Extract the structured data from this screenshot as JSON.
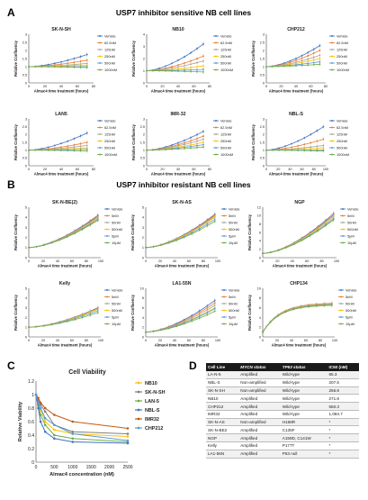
{
  "figure": {
    "panel_a": {
      "letter": "A",
      "title": "USP7 inhibitor sensitive NB cell lines"
    },
    "panel_b": {
      "letter": "B",
      "title": "USP7 inhibitor resistant NB cell lines"
    },
    "panel_c": {
      "letter": "C"
    },
    "panel_d": {
      "letter": "D"
    }
  },
  "colors": {
    "Vehicle": "#4472c4",
    "62.5nM": "#ed7d31",
    "125nM": "#a5a5a5",
    "250nM": "#ffc000",
    "500nM": "#5b9bd5",
    "1000nM": "#70ad47",
    "5nM": "#ed7d31",
    "50nM": "#a5a5a5",
    "500nM_b": "#ffc000",
    "5µM": "#5b9bd5",
    "10µM": "#70ad47",
    "NB10": "#ffc000",
    "SK-N-SH": "#7f7f7f",
    "LAN-5": "#70ad47",
    "NBL-S": "#4472c4",
    "IMR32": "#c55a11",
    "CHP212": "#5b9bd5"
  },
  "chart_data": [
    {
      "type": "line",
      "panel": "A",
      "title": "SK-N-SH",
      "xlabel": "Almac4 time treatment (hours)",
      "ylabel": "Relative Confluency",
      "xlim": [
        0,
        80
      ],
      "ylim": [
        0,
        3
      ],
      "yticks": [
        "0",
        "0.5",
        "1",
        "1.5",
        "2",
        "2.5",
        "3"
      ],
      "xticks": [
        "0",
        "20",
        "40",
        "60",
        "80"
      ],
      "series": [
        {
          "name": "Vehicle",
          "start": 1,
          "end": 1.75
        },
        {
          "name": "62.5nM",
          "start": 1,
          "end": 1.4
        },
        {
          "name": "125nM",
          "start": 1,
          "end": 1.2
        },
        {
          "name": "250nM",
          "start": 1,
          "end": 1.1
        },
        {
          "name": "500nM",
          "start": 1,
          "end": 1.0
        },
        {
          "name": "1000nM",
          "start": 1,
          "end": 0.95
        }
      ]
    },
    {
      "type": "line",
      "panel": "A",
      "title": "NB10",
      "xlabel": "Almac4 time treatment (hours)",
      "ylabel": "Relative Confluency",
      "xlim": [
        0,
        80
      ],
      "ylim": [
        0,
        4
      ],
      "yticks": [
        "0",
        "1",
        "2",
        "3",
        "4"
      ],
      "xticks": [
        "0",
        "20",
        "40",
        "60",
        "80"
      ],
      "series": [
        {
          "name": "Vehicle",
          "start": 1,
          "end": 3.2
        },
        {
          "name": "62.5nM",
          "start": 1,
          "end": 2.2
        },
        {
          "name": "125nM",
          "start": 1,
          "end": 1.8
        },
        {
          "name": "250nM",
          "start": 1,
          "end": 1.4
        },
        {
          "name": "500nM",
          "start": 1,
          "end": 1.1
        },
        {
          "name": "1000nM",
          "start": 1,
          "end": 0.9
        }
      ]
    },
    {
      "type": "line",
      "panel": "A",
      "title": "CHP212",
      "xlabel": "Almac4 time treatment (hours)",
      "ylabel": "Relative Confluency",
      "xlim": [
        0,
        80
      ],
      "ylim": [
        0,
        3
      ],
      "yticks": [
        "0",
        "0.5",
        "1",
        "1.5",
        "2",
        "2.5",
        "3"
      ],
      "xticks": [
        "0",
        "20",
        "40",
        "60",
        "80"
      ],
      "series": [
        {
          "name": "Vehicle",
          "start": 1,
          "end": 2.3
        },
        {
          "name": "62.5nM",
          "start": 1,
          "end": 2.0
        },
        {
          "name": "125nM",
          "start": 1,
          "end": 1.7
        },
        {
          "name": "250nM",
          "start": 1,
          "end": 1.5
        },
        {
          "name": "500nM",
          "start": 1,
          "end": 1.3
        },
        {
          "name": "1000nM",
          "start": 1,
          "end": 1.15
        }
      ]
    },
    {
      "type": "line",
      "panel": "A",
      "title": "LAN5",
      "xlabel": "Almac4 time treatment (hours)",
      "ylabel": "Relative Confluency",
      "xlim": [
        0,
        80
      ],
      "ylim": [
        0,
        3
      ],
      "yticks": [
        "0",
        "0.5",
        "1",
        "1.5",
        "2",
        "2.5",
        "3"
      ],
      "xticks": [
        "0",
        "20",
        "40",
        "60",
        "80"
      ],
      "series": [
        {
          "name": "Vehicle",
          "start": 1,
          "end": 2.1
        },
        {
          "name": "62.5nM",
          "start": 1,
          "end": 1.5
        },
        {
          "name": "125nM",
          "start": 1,
          "end": 1.3
        },
        {
          "name": "250nM",
          "start": 1,
          "end": 1.15
        },
        {
          "name": "500nM",
          "start": 1,
          "end": 1.05
        },
        {
          "name": "1000nM",
          "start": 1,
          "end": 0.95
        }
      ]
    },
    {
      "type": "line",
      "panel": "A",
      "title": "IMR-32",
      "xlabel": "Almac4 time treatment (hours)",
      "ylabel": "Relative Confluency",
      "xlim": [
        0,
        80
      ],
      "ylim": [
        0,
        3
      ],
      "yticks": [
        "0",
        "0.5",
        "1",
        "1.5",
        "2",
        "2.5",
        "3"
      ],
      "xticks": [
        "0",
        "20",
        "40",
        "60",
        "80"
      ],
      "series": [
        {
          "name": "Vehicle",
          "start": 1,
          "end": 2.2
        },
        {
          "name": "62.5nM",
          "start": 1,
          "end": 1.9
        },
        {
          "name": "125nM",
          "start": 1,
          "end": 1.7
        },
        {
          "name": "250nM",
          "start": 1,
          "end": 1.5
        },
        {
          "name": "500nM",
          "start": 1,
          "end": 1.35
        },
        {
          "name": "1000nM",
          "start": 1,
          "end": 1.2
        }
      ]
    },
    {
      "type": "line",
      "panel": "A",
      "title": "NBL-S",
      "xlabel": "Almac4 time treatment (hours)",
      "ylabel": "Relative Confluency",
      "xlim": [
        0,
        100
      ],
      "ylim": [
        0,
        3
      ],
      "yticks": [
        "0",
        "0.5",
        "1",
        "1.5",
        "2",
        "2.5",
        "3"
      ],
      "xticks": [
        "0",
        "20",
        "40",
        "60",
        "80",
        "100"
      ],
      "series": [
        {
          "name": "Vehicle",
          "start": 1,
          "end": 2.5
        },
        {
          "name": "62.5nM",
          "start": 1,
          "end": 1.7
        },
        {
          "name": "125nM",
          "start": 1,
          "end": 1.3
        },
        {
          "name": "250nM",
          "start": 1,
          "end": 1.15
        },
        {
          "name": "500nM",
          "start": 1,
          "end": 1.0
        },
        {
          "name": "1000nM",
          "start": 1,
          "end": 0.95
        }
      ]
    },
    {
      "type": "line",
      "panel": "B",
      "title": "SK-N-BE(2)",
      "xlabel": "Almac4 time treatment (hours)",
      "ylabel": "Relative Confluency",
      "xlim": [
        0,
        100
      ],
      "ylim": [
        0,
        5
      ],
      "yticks": [
        "0",
        "1",
        "2",
        "3",
        "4",
        "5"
      ],
      "xticks": [
        "0",
        "20",
        "40",
        "60",
        "80",
        "100"
      ],
      "series": [
        {
          "name": "Vehicle",
          "start": 1,
          "end": 4.2
        },
        {
          "name": "5nM",
          "start": 1,
          "end": 4.1
        },
        {
          "name": "50nM",
          "start": 1,
          "end": 4.0
        },
        {
          "name": "500nM",
          "start": 1,
          "end": 3.9
        },
        {
          "name": "5µM",
          "start": 1,
          "end": 3.8
        },
        {
          "name": "10µM",
          "start": 1,
          "end": 3.7
        }
      ]
    },
    {
      "type": "line",
      "panel": "B",
      "title": "SK-N-AS",
      "xlabel": "Almac4 time treatment (hours)",
      "ylabel": "Relative Confluency",
      "xlim": [
        0,
        100
      ],
      "ylim": [
        0,
        5
      ],
      "yticks": [
        "0",
        "1",
        "2",
        "3",
        "4",
        "5"
      ],
      "xticks": [
        "0",
        "20",
        "40",
        "60",
        "80",
        "100"
      ],
      "series": [
        {
          "name": "Vehicle",
          "start": 1,
          "end": 4.3
        },
        {
          "name": "5nM",
          "start": 1,
          "end": 4.2
        },
        {
          "name": "50nM",
          "start": 1,
          "end": 4.1
        },
        {
          "name": "500nM",
          "start": 1,
          "end": 4.0
        },
        {
          "name": "5µM",
          "start": 1,
          "end": 3.8
        },
        {
          "name": "10µM",
          "start": 1,
          "end": 3.6
        }
      ]
    },
    {
      "type": "line",
      "panel": "B",
      "title": "NGP",
      "xlabel": "Almac4 time treatment (hours)",
      "ylabel": "Relative Confluency",
      "xlim": [
        0,
        100
      ],
      "ylim": [
        0,
        12
      ],
      "yticks": [
        "0",
        "2",
        "4",
        "6",
        "8",
        "10",
        "12"
      ],
      "xticks": [
        "0",
        "20",
        "40",
        "60",
        "80",
        "100"
      ],
      "series": [
        {
          "name": "Vehicle",
          "start": 1,
          "end": 10.5
        },
        {
          "name": "5nM",
          "start": 1,
          "end": 10.2
        },
        {
          "name": "50nM",
          "start": 1,
          "end": 10.0
        },
        {
          "name": "500nM",
          "start": 1,
          "end": 9.7
        },
        {
          "name": "5µM",
          "start": 1,
          "end": 9.3
        },
        {
          "name": "10µM",
          "start": 1,
          "end": 9.0
        }
      ]
    },
    {
      "type": "line",
      "panel": "B",
      "title": "Kelly",
      "xlabel": "Almac4 time treatment (hours)",
      "ylabel": "Relative Confluency",
      "xlim": [
        0,
        100
      ],
      "ylim": [
        0,
        5
      ],
      "yticks": [
        "0",
        "1",
        "2",
        "3",
        "4",
        "5"
      ],
      "xticks": [
        "0",
        "20",
        "40",
        "60",
        "80",
        "100"
      ],
      "series": [
        {
          "name": "Vehicle",
          "start": 1,
          "end": 3.0
        },
        {
          "name": "5nM",
          "start": 1,
          "end": 2.95
        },
        {
          "name": "50nM",
          "start": 1,
          "end": 2.9
        },
        {
          "name": "500nM",
          "start": 1,
          "end": 2.85
        },
        {
          "name": "5µM",
          "start": 1,
          "end": 2.7
        },
        {
          "name": "10µM",
          "start": 1,
          "end": 2.5
        }
      ]
    },
    {
      "type": "line",
      "panel": "B",
      "title": "LA1-55N",
      "xlabel": "Almac4 time treatment (hours)",
      "ylabel": "Relative Confluency",
      "xlim": [
        0,
        100
      ],
      "ylim": [
        0,
        10
      ],
      "yticks": [
        "0",
        "2",
        "4",
        "6",
        "8",
        "10"
      ],
      "xticks": [
        "0",
        "20",
        "40",
        "60",
        "80",
        "100"
      ],
      "series": [
        {
          "name": "Vehicle",
          "start": 1,
          "end": 7.5
        },
        {
          "name": "5nM",
          "start": 1,
          "end": 7.0
        },
        {
          "name": "50nM",
          "start": 1,
          "end": 6.5
        },
        {
          "name": "500nM",
          "start": 1,
          "end": 6.0
        },
        {
          "name": "5µM",
          "start": 1,
          "end": 5.8
        },
        {
          "name": "10µM",
          "start": 1,
          "end": 5.3
        }
      ]
    },
    {
      "type": "line",
      "panel": "B",
      "title": "CHP134",
      "xlabel": "Almac4 time treatment (hours)",
      "ylabel": "Relative Confluency",
      "xlim": [
        0,
        100
      ],
      "ylim": [
        0,
        10
      ],
      "yticks": [
        "0",
        "2",
        "4",
        "6",
        "8",
        "10"
      ],
      "xticks": [
        "0",
        "20",
        "40",
        "60",
        "80",
        "100"
      ],
      "plateau": true,
      "series": [
        {
          "name": "Vehicle",
          "start": 1,
          "end": 7.0
        },
        {
          "name": "5nM",
          "start": 1,
          "end": 7.0
        },
        {
          "name": "50nM",
          "start": 1,
          "end": 6.9
        },
        {
          "name": "500nM",
          "start": 1,
          "end": 6.8
        },
        {
          "name": "5µM",
          "start": 1,
          "end": 6.7
        },
        {
          "name": "10µM",
          "start": 1,
          "end": 6.6
        }
      ]
    },
    {
      "type": "line",
      "panel": "C",
      "title": "Cell Viability",
      "xlabel": "Almac4 concentration (nM)",
      "ylabel": "Relative Viability",
      "xlim": [
        0,
        2500
      ],
      "ylim": [
        0,
        1.2
      ],
      "yticks": [
        "0",
        "0.2",
        "0.4",
        "0.6",
        "0.8",
        "1",
        "1.2"
      ],
      "xticks": [
        "0",
        "500",
        "1000",
        "1500",
        "2000",
        "2500"
      ],
      "x": [
        0,
        62.5,
        125,
        250,
        500,
        1000,
        2500
      ],
      "series": [
        {
          "name": "NB10",
          "values": [
            1.0,
            0.9,
            0.78,
            0.6,
            0.48,
            0.42,
            0.38
          ]
        },
        {
          "name": "SK-N-SH",
          "values": [
            1.0,
            0.92,
            0.85,
            0.75,
            0.55,
            0.45,
            0.42
          ]
        },
        {
          "name": "LAN-5",
          "values": [
            1.0,
            0.85,
            0.7,
            0.55,
            0.4,
            0.35,
            0.3
          ]
        },
        {
          "name": "NBL-S",
          "values": [
            1.0,
            0.8,
            0.6,
            0.45,
            0.35,
            0.3,
            0.28
          ]
        },
        {
          "name": "IMR32",
          "values": [
            1.0,
            0.95,
            0.88,
            0.8,
            0.7,
            0.6,
            0.5
          ]
        },
        {
          "name": "CHP212",
          "values": [
            1.0,
            0.88,
            0.8,
            0.65,
            0.55,
            0.42,
            0.32
          ]
        }
      ]
    }
  ],
  "table": {
    "headers": [
      "Cell Line",
      "MYCN status",
      "TP53 status",
      "IC50 (nM)"
    ],
    "rows": [
      [
        "LA-N-5",
        "Amplified",
        "Wild-type",
        "65.3"
      ],
      [
        "NBL-S",
        "Non-amplified",
        "Wild-type",
        "207.5"
      ],
      [
        "SK-N-SH",
        "Non-amplified",
        "Wild-type",
        "256.8"
      ],
      [
        "NB10",
        "Amplified",
        "Wild-type",
        "271.8"
      ],
      [
        "CHP212",
        "Amplified",
        "Wild-type",
        "550.3"
      ],
      [
        "IMR32",
        "Amplified",
        "Wild-type",
        "1,084.7"
      ],
      [
        "SK-N-AS",
        "Non-amplified",
        "H168R",
        "*"
      ],
      [
        "SK-N-BE2",
        "Amplified",
        "C135F",
        "*"
      ],
      [
        "NGP",
        "Amplified",
        "A159D, C141W",
        "*"
      ],
      [
        "Kelly",
        "Amplified",
        "P177T",
        "*"
      ],
      [
        "LA1-55N",
        "Amplified",
        "P53 null",
        "*"
      ]
    ]
  }
}
